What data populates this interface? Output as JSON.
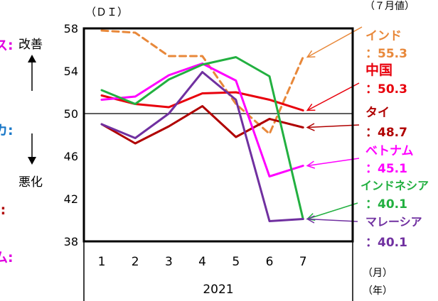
{
  "chart_data": {
    "type": "line",
    "unit_label": "（ＤＩ）",
    "month_note": "（７月値）",
    "x": [
      1,
      2,
      3,
      4,
      5,
      6,
      7
    ],
    "x_ticks": [
      "1",
      "2",
      "3",
      "4",
      "5",
      "6",
      "7"
    ],
    "year_label": "2021",
    "month_unit": "（月）",
    "year_unit": "（年）",
    "ylim": [
      38,
      58
    ],
    "y_ticks": [
      "58",
      "54",
      "50",
      "46",
      "42",
      "38"
    ],
    "y_tick_values": [
      58,
      54,
      50,
      46,
      42,
      38
    ],
    "reference_line": 50,
    "improve_label": "改善",
    "worsen_label": "悪化",
    "series": [
      {
        "name": "インド",
        "value_label": "：55.3",
        "color": "#e8883a",
        "dashed": true,
        "values": [
          57.8,
          57.6,
          55.4,
          55.4,
          50.9,
          48.1,
          55.3
        ]
      },
      {
        "name": "中国",
        "value_label": "：50.3",
        "color": "#e8000c",
        "dashed": false,
        "values": [
          51.7,
          50.9,
          50.6,
          51.9,
          52.0,
          51.3,
          50.3
        ]
      },
      {
        "name": "タイ",
        "value_label": "：48.7",
        "color": "#b00000",
        "dashed": false,
        "values": [
          49.0,
          47.2,
          48.8,
          50.7,
          47.8,
          49.5,
          48.7
        ]
      },
      {
        "name": "ベトナム",
        "value_label": "：45.1",
        "color": "#ff00ff",
        "dashed": false,
        "values": [
          51.3,
          51.6,
          53.6,
          54.7,
          53.1,
          44.1,
          45.1
        ]
      },
      {
        "name": "インドネシア",
        "value_label": "：40.1",
        "color": "#22b040",
        "dashed": false,
        "values": [
          52.2,
          50.9,
          53.2,
          54.6,
          55.3,
          53.5,
          40.1
        ]
      },
      {
        "name": "マレーシア",
        "value_label": "：40.1",
        "color": "#7030a0",
        "dashed": false,
        "values": [
          49.0,
          47.7,
          50.0,
          53.9,
          51.3,
          39.9,
          40.1
        ]
      }
    ]
  },
  "left_fragments": [
    {
      "text": "ス:",
      "color": "#e000e0"
    },
    {
      "text": ":",
      "color": "#1a8fd0"
    },
    {
      "text": "カ:",
      "color": "#1a78c8"
    },
    {
      "text": "):",
      "color": "#b00000"
    },
    {
      "text": "ム:",
      "color": "#e000e0"
    }
  ]
}
